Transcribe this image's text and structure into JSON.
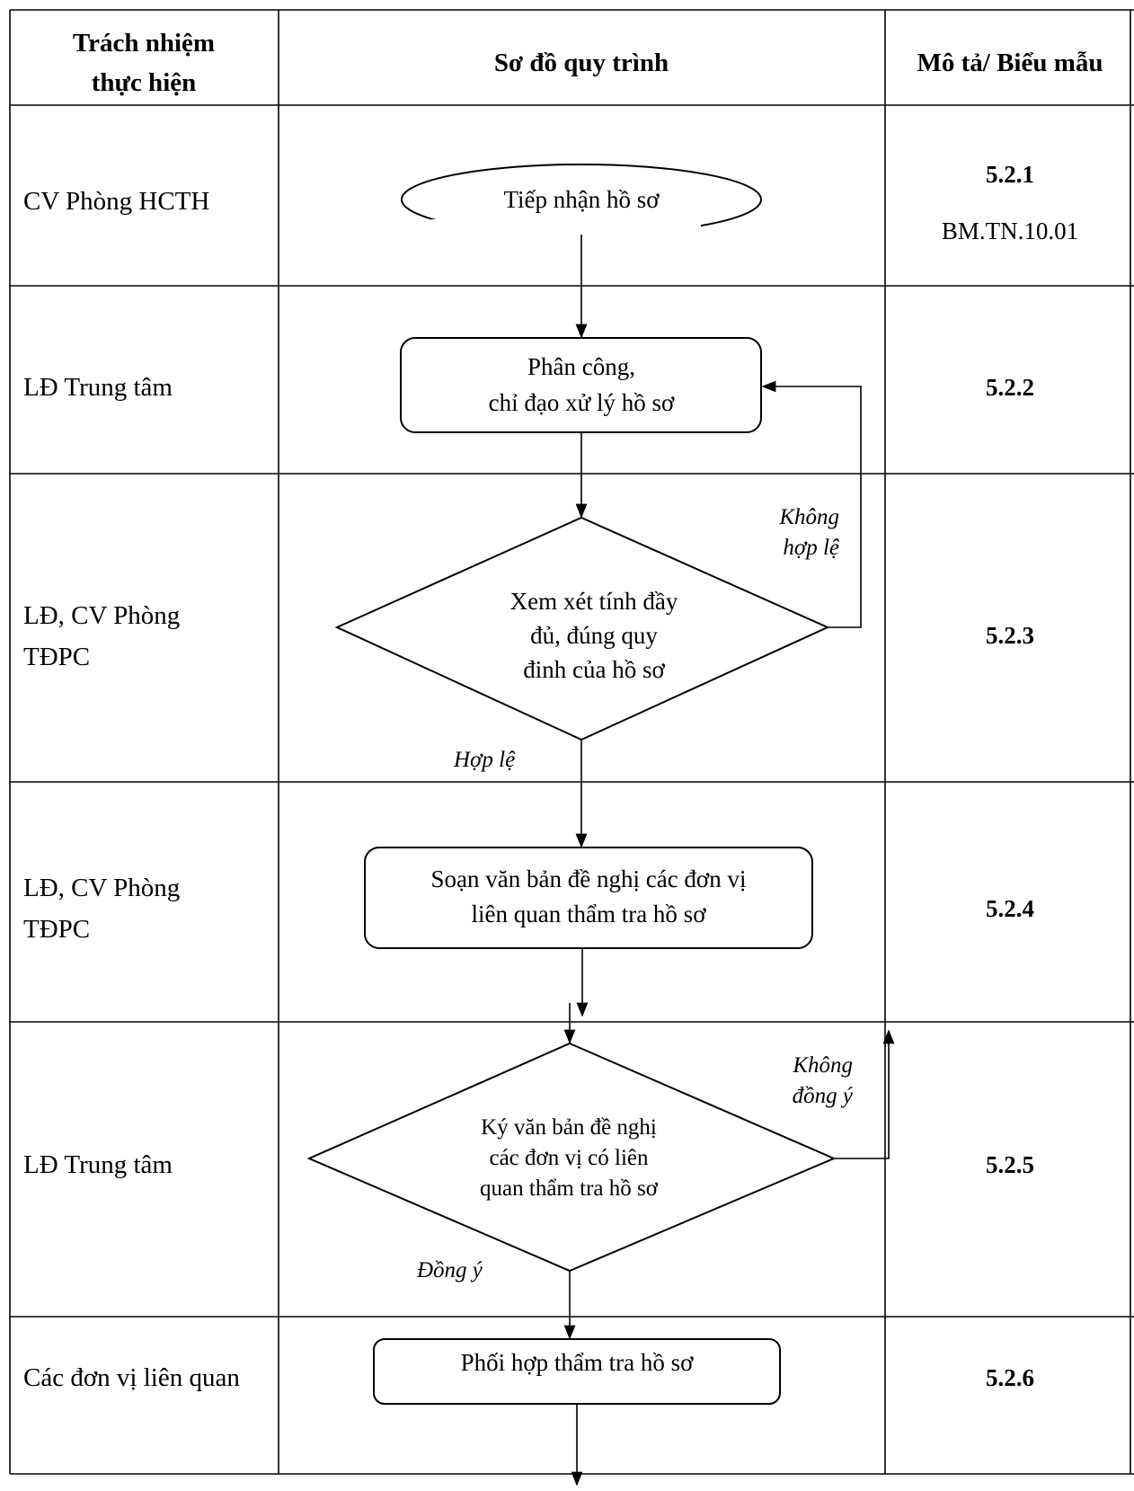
{
  "table": {
    "headers": {
      "responsibility": [
        "Trách nhiệm",
        "thực hiện"
      ],
      "process": "Sơ đồ quy trình",
      "description": "Mô tả/ Biểu mẫu"
    },
    "rows": [
      {
        "responsibility": [
          "CV Phòng HCTH"
        ],
        "ref": "5.2.1",
        "form": "BM.TN.10.01"
      },
      {
        "responsibility": [
          "LĐ Trung tâm"
        ],
        "ref": "5.2.2",
        "form": ""
      },
      {
        "responsibility": [
          "LĐ, CV Phòng",
          "TĐPC"
        ],
        "ref": "5.2.3",
        "form": ""
      },
      {
        "responsibility": [
          "LĐ, CV Phòng",
          "TĐPC"
        ],
        "ref": "5.2.4",
        "form": ""
      },
      {
        "responsibility": [
          "LĐ Trung tâm"
        ],
        "ref": "5.2.5",
        "form": ""
      },
      {
        "responsibility": [
          "Các đơn vị liên quan"
        ],
        "ref": "5.2.6",
        "form": ""
      }
    ]
  },
  "flow": {
    "nodes": [
      {
        "id": "start",
        "shape": "ellipse",
        "lines": [
          "Tiếp nhận hồ sơ"
        ]
      },
      {
        "id": "assign",
        "shape": "rounded-rect",
        "lines": [
          "Phân công,",
          "chỉ đạo xử lý hồ sơ"
        ]
      },
      {
        "id": "review",
        "shape": "diamond",
        "lines": [
          "Xem xét tính đầy",
          "đủ, đúng quy",
          "đinh của hồ sơ"
        ]
      },
      {
        "id": "draft",
        "shape": "rounded-rect",
        "lines": [
          "Soạn văn bản đề nghị các đơn vị",
          "liên quan thẩm tra hồ sơ"
        ]
      },
      {
        "id": "sign",
        "shape": "diamond",
        "lines": [
          "Ký văn bản đề nghị",
          "các đơn vị có liên",
          "quan thẩm tra hồ sơ"
        ]
      },
      {
        "id": "coordinate",
        "shape": "rounded-rect",
        "lines": [
          "Phối hợp thẩm tra hồ sơ"
        ]
      }
    ],
    "edge_labels": {
      "review_invalid": [
        "Không",
        "hợp lệ"
      ],
      "review_valid": "Hợp lệ",
      "sign_reject": [
        "Không",
        "đồng ý"
      ],
      "sign_accept": "Đồng ý"
    }
  }
}
